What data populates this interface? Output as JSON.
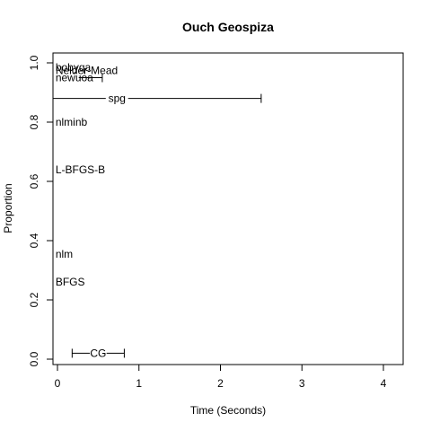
{
  "chart_data": {
    "type": "scatter",
    "title": "Ouch Geospiza",
    "xlabel": "Time (Seconds)",
    "ylabel": "Proportion",
    "xlim": [
      0,
      4
    ],
    "ylim": [
      0,
      1
    ],
    "x_ticks": [
      "0",
      "1",
      "2",
      "3",
      "4"
    ],
    "y_ticks": [
      "0.0",
      "0.2",
      "0.4",
      "0.6",
      "0.8",
      "1.0"
    ],
    "grid": false,
    "legend": "none",
    "points": [
      {
        "label": "bobyqa",
        "x": 0.02,
        "y": 0.985,
        "lo": null,
        "hi": null
      },
      {
        "label": "Nelder-Mead",
        "x": 0.02,
        "y": 0.975,
        "lo": null,
        "hi": null
      },
      {
        "label": "newuoa",
        "x": 0.02,
        "y": 0.95,
        "lo": null,
        "hi": 0.55
      },
      {
        "label": "spg",
        "x": 0.73,
        "y": 0.88,
        "lo": -0.1,
        "hi": 2.5
      },
      {
        "label": "nlminb",
        "x": 0.02,
        "y": 0.8,
        "lo": null,
        "hi": null
      },
      {
        "label": "L-BFGS-B",
        "x": 0.02,
        "y": 0.64,
        "lo": null,
        "hi": null
      },
      {
        "label": "nlm",
        "x": 0.02,
        "y": 0.355,
        "lo": null,
        "hi": null
      },
      {
        "label": "BFGS",
        "x": 0.02,
        "y": 0.26,
        "lo": null,
        "hi": null
      },
      {
        "label": "CG",
        "x": 0.5,
        "y": 0.02,
        "lo": 0.18,
        "hi": 0.82
      }
    ]
  }
}
